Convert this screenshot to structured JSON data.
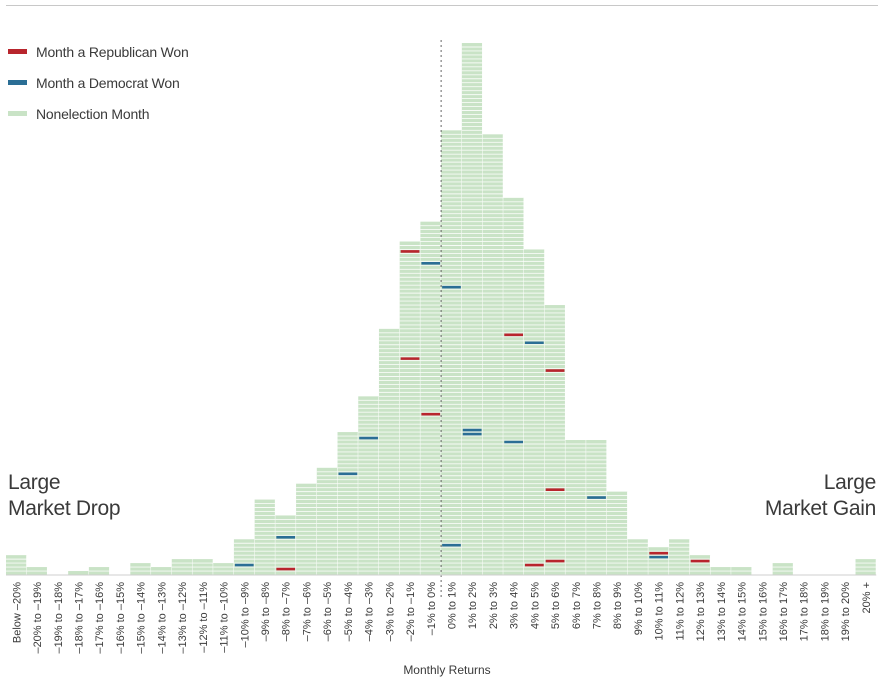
{
  "legend": {
    "items": [
      {
        "label": "Month a Republican Won",
        "color": "#b8252d"
      },
      {
        "label": "Month a Democrat Won",
        "color": "#2b6e95"
      },
      {
        "label": "Nonelection Month",
        "color": "#c9e3c6"
      }
    ]
  },
  "labels": {
    "left_line1": "Large",
    "left_line2": "Market Drop",
    "right_line1": "Large",
    "right_line2": "Market Gain"
  },
  "chart_data": {
    "type": "bar",
    "xlabel": "Monthly Returns",
    "ylabel": "",
    "categories": [
      "Below –20%",
      "–20% to –19%",
      "–19% to –18%",
      "–18% to –17%",
      "–17% to –16%",
      "–16% to –15%",
      "–15% to –14%",
      "–14% to –13%",
      "–13% to –12%",
      "–12% to –11%",
      "–11% to –10%",
      "–10% to –9%",
      "–9% to –8%",
      "–8% to –7%",
      "–7% to –6%",
      "–6% to –5%",
      "–5% to –4%",
      "–4% to –3%",
      "–3% to –2%",
      "–2% to –1%",
      "–1% to 0%",
      "0% to 1%",
      "1% to 2%",
      "2% to 3%",
      "3% to 4%",
      "4% to 5%",
      "5% to 6%",
      "6% to 7%",
      "7% to 8%",
      "8% to 9%",
      "9% to 10%",
      "10% to 11%",
      "11% to 12%",
      "12% to 13%",
      "13% to 14%",
      "14% to 15%",
      "15% to 16%",
      "16% to 17%",
      "17% to 18%",
      "18% to 19%",
      "19% to 20%",
      "20% +"
    ],
    "values": [
      5,
      2,
      0,
      1,
      2,
      0,
      3,
      2,
      4,
      4,
      3,
      9,
      19,
      15,
      23,
      27,
      36,
      45,
      62,
      84,
      89,
      112,
      134,
      111,
      95,
      82,
      68,
      34,
      34,
      21,
      9,
      7,
      9,
      5,
      2,
      2,
      0,
      3,
      0,
      0,
      0,
      4
    ],
    "republican_months": [
      [
        19,
        82
      ],
      [
        19,
        55
      ],
      [
        20,
        41
      ],
      [
        24,
        61
      ],
      [
        26,
        52
      ],
      [
        26,
        22
      ],
      [
        26,
        4
      ],
      [
        25,
        3
      ],
      [
        31,
        6
      ],
      [
        33,
        4
      ],
      [
        13,
        2
      ]
    ],
    "democrat_months": [
      [
        20,
        79
      ],
      [
        21,
        73
      ],
      [
        17,
        35
      ],
      [
        16,
        26
      ],
      [
        22,
        37
      ],
      [
        22,
        36
      ],
      [
        24,
        34
      ],
      [
        25,
        59
      ],
      [
        28,
        20
      ],
      [
        21,
        8
      ],
      [
        31,
        5
      ],
      [
        11,
        3
      ],
      [
        13,
        10
      ]
    ],
    "ylim": [
      0,
      134
    ],
    "grid": false,
    "reference_line": "0%"
  }
}
